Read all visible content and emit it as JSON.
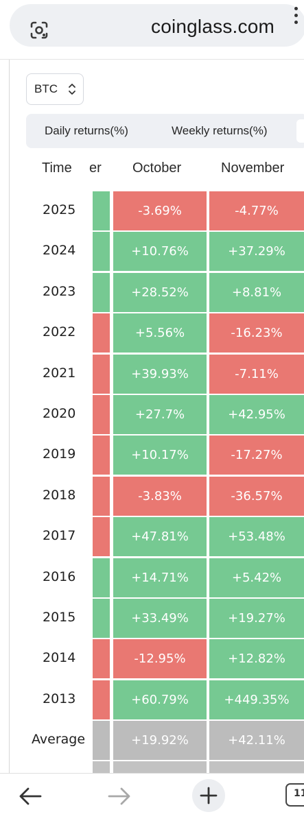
{
  "browser": {
    "url": "coinglass.com",
    "tab_count": "11"
  },
  "selector": {
    "value": "BTC"
  },
  "tabs": [
    {
      "label": "Daily returns(%)"
    },
    {
      "label": "Weekly returns(%)"
    }
  ],
  "table": {
    "headers": {
      "time": "Time",
      "prev": "er",
      "october": "October",
      "november": "November"
    },
    "rows": [
      {
        "year": "2025",
        "prev": "up",
        "october": "-3.69%",
        "november": "-4.77%"
      },
      {
        "year": "2024",
        "prev": "up",
        "october": "+10.76%",
        "november": "+37.29%"
      },
      {
        "year": "2023",
        "prev": "up",
        "october": "+28.52%",
        "november": "+8.81%"
      },
      {
        "year": "2022",
        "prev": "down",
        "october": "+5.56%",
        "november": "-16.23%"
      },
      {
        "year": "2021",
        "prev": "down",
        "october": "+39.93%",
        "november": "-7.11%"
      },
      {
        "year": "2020",
        "prev": "down",
        "october": "+27.7%",
        "november": "+42.95%"
      },
      {
        "year": "2019",
        "prev": "down",
        "october": "+10.17%",
        "november": "-17.27%"
      },
      {
        "year": "2018",
        "prev": "down",
        "october": "-3.83%",
        "november": "-36.57%"
      },
      {
        "year": "2017",
        "prev": "down",
        "october": "+47.81%",
        "november": "+53.48%"
      },
      {
        "year": "2016",
        "prev": "up",
        "october": "+14.71%",
        "november": "+5.42%"
      },
      {
        "year": "2015",
        "prev": "up",
        "october": "+33.49%",
        "november": "+19.27%"
      },
      {
        "year": "2014",
        "prev": "down",
        "october": "-12.95%",
        "november": "+12.82%"
      },
      {
        "year": "2013",
        "prev": "down",
        "october": "+60.79%",
        "november": "+449.35%"
      },
      {
        "year": "Average",
        "prev": "neutral",
        "october": "+19.92%",
        "november": "+42.11%"
      }
    ]
  },
  "colors": {
    "up": "#76c992",
    "down": "#e97872",
    "neutral": "#bcbcbc"
  }
}
